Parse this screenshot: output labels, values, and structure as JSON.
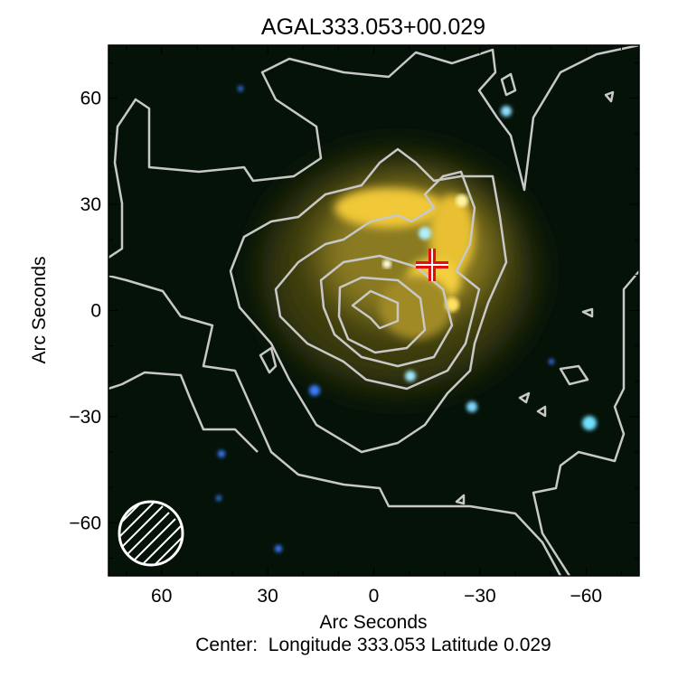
{
  "chart_data": {
    "type": "image",
    "title": "AGAL333.053+00.029",
    "xlabel": "Arc Seconds",
    "ylabel": "Arc Seconds",
    "caption": "Center:  Longitude 333.053 Latitude 0.029",
    "xlim": [
      75,
      -75
    ],
    "ylim": [
      -75,
      75
    ],
    "xticks": [
      60,
      30,
      0,
      -30,
      -60
    ],
    "yticks": [
      60,
      30,
      0,
      -30,
      -60
    ],
    "xtick_labels": [
      "60",
      "30",
      "0",
      "−30",
      "−60"
    ],
    "ytick_labels": [
      "60",
      "30",
      "0",
      "−30",
      "−60"
    ],
    "overlay": {
      "contours": "gray",
      "marker": {
        "shape": "cross",
        "x": -17,
        "y": 13,
        "color": "#e01010"
      },
      "beam": {
        "shape": "hatched-circle",
        "x": 63,
        "y": -62,
        "color": "#ffffff"
      }
    },
    "colors": {
      "background": "#041208",
      "emission": "#f0c838",
      "stars": "#3a7cff",
      "contour": "#c8c8c8"
    }
  }
}
